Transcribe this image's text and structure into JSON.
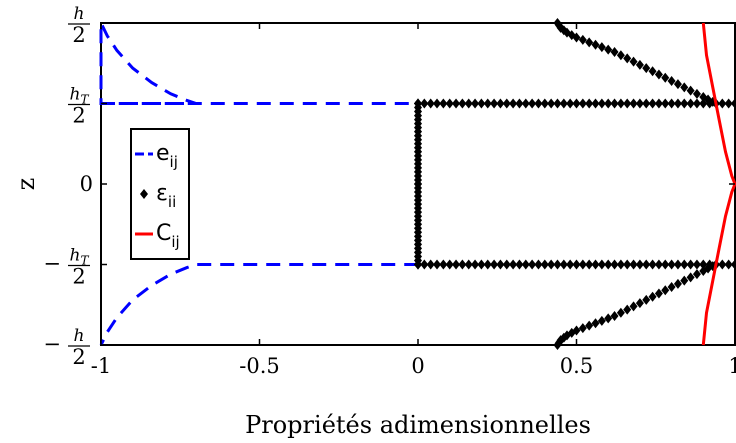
{
  "chart_data": {
    "type": "line",
    "xlabel": "Propriétés adimensionnelles",
    "ylabel": "z",
    "xlim": [
      -1,
      1
    ],
    "ylim": [
      -1,
      1
    ],
    "x_ticks": [
      {
        "value": -1,
        "label": "-1"
      },
      {
        "value": -0.5,
        "label": "-0.5"
      },
      {
        "value": 0,
        "label": "0"
      },
      {
        "value": 0.5,
        "label": "0.5"
      },
      {
        "value": 1,
        "label": "1"
      }
    ],
    "y_ticks": [
      {
        "value": 1,
        "label": "h/2"
      },
      {
        "value": 0.5,
        "label": "h_T/2"
      },
      {
        "value": 0,
        "label": "0"
      },
      {
        "value": -0.5,
        "label": "−h_T/2"
      },
      {
        "value": -1,
        "label": "−h/2"
      }
    ],
    "legend": {
      "placement": "left",
      "entries": [
        "e_ij",
        "ε_ii",
        "C_ij"
      ]
    },
    "grid": false,
    "series": [
      {
        "name": "e_ij",
        "color": "#0000ff",
        "style": "dashed",
        "points": [
          [
            -1.0,
            0.5
          ],
          [
            -0.7,
            0.5
          ],
          [
            -0.73,
            0.52
          ],
          [
            -0.78,
            0.56
          ],
          [
            -0.84,
            0.63
          ],
          [
            -0.9,
            0.72
          ],
          [
            -0.95,
            0.83
          ],
          [
            -0.98,
            0.92
          ],
          [
            -1.0,
            1.0
          ],
          [
            -1.0,
            0.5
          ],
          [
            0.0,
            0.5
          ],
          [
            0.0,
            -0.5
          ],
          [
            -0.7,
            -0.5
          ],
          [
            -0.73,
            -0.52
          ],
          [
            -0.78,
            -0.56
          ],
          [
            -0.84,
            -0.63
          ],
          [
            -0.9,
            -0.72
          ],
          [
            -0.95,
            -0.83
          ],
          [
            -0.98,
            -0.92
          ],
          [
            -1.0,
            -1.0
          ]
        ]
      },
      {
        "name": "ε_ii",
        "color": "#000000",
        "style": "diamond-markers",
        "points": [
          [
            0.44,
            1.0
          ],
          [
            0.45,
            0.97
          ],
          [
            0.47,
            0.94
          ],
          [
            0.5,
            0.91
          ],
          [
            0.54,
            0.88
          ],
          [
            0.58,
            0.85
          ],
          [
            0.62,
            0.82
          ],
          [
            0.66,
            0.78
          ],
          [
            0.7,
            0.74
          ],
          [
            0.74,
            0.7
          ],
          [
            0.78,
            0.66
          ],
          [
            0.82,
            0.62
          ],
          [
            0.86,
            0.58
          ],
          [
            0.9,
            0.54
          ],
          [
            0.93,
            0.51
          ],
          [
            0.0,
            0.5
          ],
          [
            0.0,
            0.0
          ],
          [
            0.0,
            -0.5
          ],
          [
            1.0,
            0.5
          ],
          [
            1.0,
            -0.5
          ],
          [
            0.93,
            -0.51
          ],
          [
            0.9,
            -0.54
          ],
          [
            0.86,
            -0.58
          ],
          [
            0.82,
            -0.62
          ],
          [
            0.78,
            -0.66
          ],
          [
            0.74,
            -0.7
          ],
          [
            0.7,
            -0.74
          ],
          [
            0.66,
            -0.78
          ],
          [
            0.62,
            -0.82
          ],
          [
            0.58,
            -0.85
          ],
          [
            0.54,
            -0.88
          ],
          [
            0.5,
            -0.91
          ],
          [
            0.47,
            -0.94
          ],
          [
            0.45,
            -0.97
          ],
          [
            0.44,
            -1.0
          ]
        ]
      },
      {
        "name": "C_ij",
        "color": "#ff0000",
        "style": "solid",
        "points": [
          [
            0.9,
            1.0
          ],
          [
            0.91,
            0.8
          ],
          [
            0.93,
            0.6
          ],
          [
            0.95,
            0.4
          ],
          [
            0.97,
            0.2
          ],
          [
            0.99,
            0.05
          ],
          [
            1.0,
            0.0
          ],
          [
            0.99,
            -0.05
          ],
          [
            0.97,
            -0.2
          ],
          [
            0.95,
            -0.4
          ],
          [
            0.93,
            -0.6
          ],
          [
            0.91,
            -0.8
          ],
          [
            0.9,
            -1.0
          ]
        ]
      }
    ]
  }
}
